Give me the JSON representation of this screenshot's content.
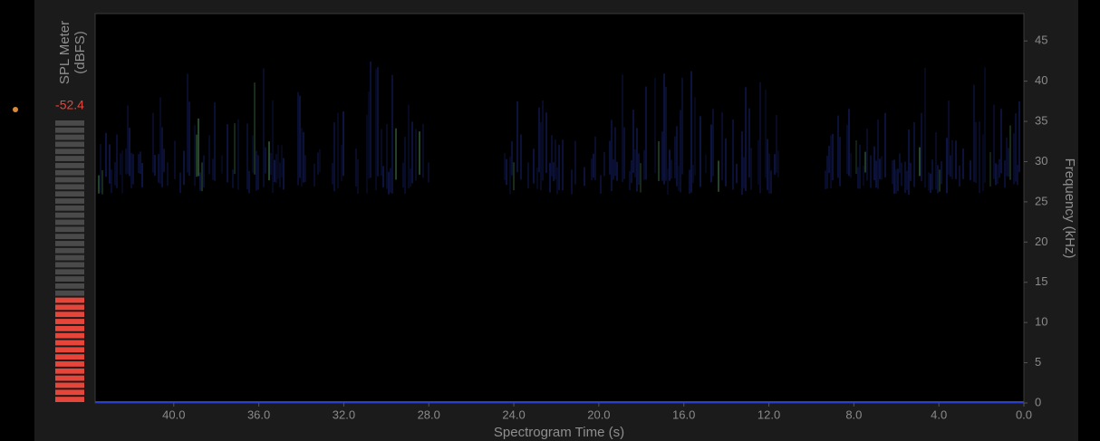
{
  "meter": {
    "title_lines": [
      "SPL Meter",
      "(dBFS)"
    ],
    "reading": -52.4
  },
  "spectrogram": {
    "xlabel": "Spectrogram Time (s)",
    "ylabel": "Frequency (kHz)",
    "xlim": [
      43.7,
      0
    ],
    "ylim": [
      0,
      48.4
    ],
    "xticks": [
      {
        "value": 40,
        "label": "40.0"
      },
      {
        "value": 36,
        "label": "36.0"
      },
      {
        "value": 32,
        "label": "32.0"
      },
      {
        "value": 28,
        "label": "28.0"
      },
      {
        "value": 24,
        "label": "24.0"
      },
      {
        "value": 20,
        "label": "20.0"
      },
      {
        "value": 16,
        "label": "16.0"
      },
      {
        "value": 12,
        "label": "12.0"
      },
      {
        "value": 8,
        "label": "8.0"
      },
      {
        "value": 4,
        "label": "4.0"
      },
      {
        "value": 0,
        "label": "0.0"
      }
    ],
    "yticks": [
      0,
      5,
      10,
      15,
      20,
      25,
      30,
      35,
      40,
      45
    ]
  }
}
